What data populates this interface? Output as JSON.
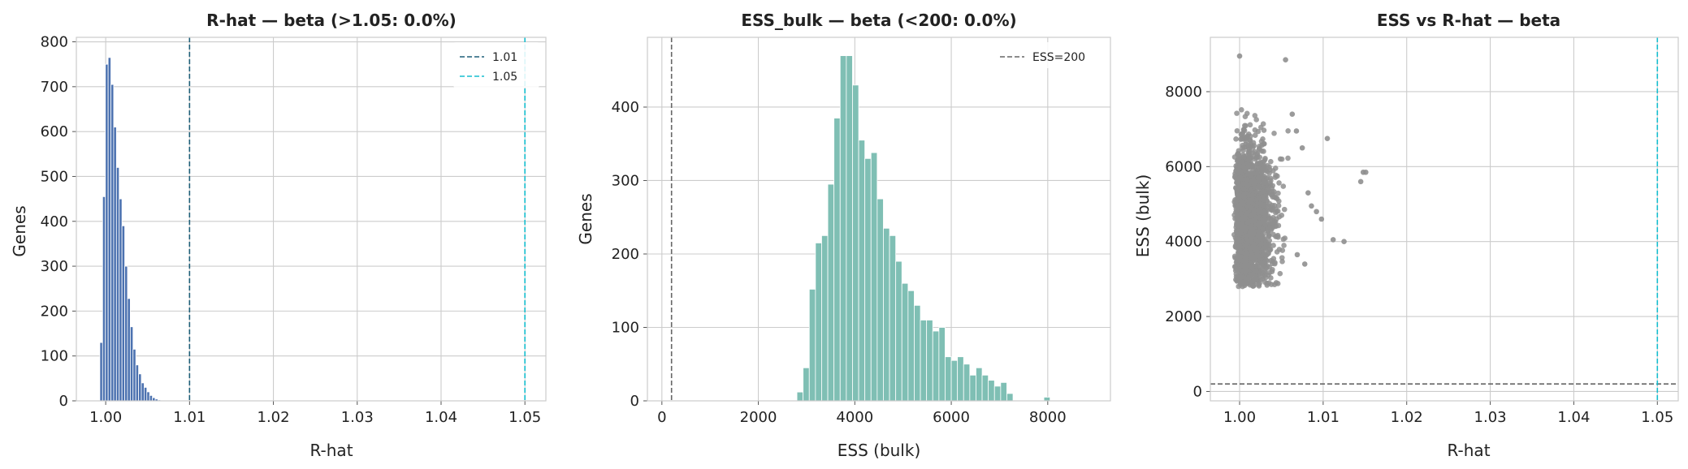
{
  "colors": {
    "hist1": "#4c72b0",
    "hist2": "#7fbfb4",
    "scatter": "#8f8f8f",
    "line_dark": "#1f5f78",
    "line_teal": "#17becf",
    "line_gray": "#666666"
  },
  "chart_data": [
    {
      "type": "histogram",
      "title": "R-hat — beta (>1.05: 0.0%)",
      "xlabel": "R-hat",
      "ylabel": "Genes",
      "xlim": [
        0.9965,
        1.0525
      ],
      "ylim": [
        0,
        810
      ],
      "xticks": [
        1.0,
        1.01,
        1.02,
        1.03,
        1.04,
        1.05
      ],
      "xtick_labels": [
        "1.00",
        "1.01",
        "1.02",
        "1.03",
        "1.04",
        "1.05"
      ],
      "yticks": [
        0,
        100,
        200,
        300,
        400,
        500,
        600,
        700,
        800
      ],
      "ytick_labels": [
        "0",
        "100",
        "200",
        "300",
        "400",
        "500",
        "600",
        "700",
        "800"
      ],
      "bin_start": 0.9993,
      "bin_width": 0.00033,
      "counts": [
        130,
        455,
        750,
        765,
        705,
        610,
        520,
        450,
        390,
        300,
        228,
        165,
        115,
        80,
        60,
        40,
        30,
        20,
        12,
        7,
        4,
        2,
        1
      ],
      "vlines": [
        {
          "x": 1.01,
          "label": "1.01",
          "color": "#1f5f78"
        },
        {
          "x": 1.05,
          "label": "1.05",
          "color": "#17becf"
        }
      ],
      "legend": "top-right",
      "grid": true
    },
    {
      "type": "histogram",
      "title": "ESS_bulk — beta (<200: 0.0%)",
      "xlabel": "ESS (bulk)",
      "ylabel": "Genes",
      "xlim": [
        -300,
        9300
      ],
      "ylim": [
        0,
        495
      ],
      "xticks": [
        0,
        2000,
        4000,
        6000,
        8000
      ],
      "xtick_labels": [
        "0",
        "2000",
        "4000",
        "6000",
        "8000"
      ],
      "yticks": [
        0,
        100,
        200,
        300,
        400
      ],
      "ytick_labels": [
        "0",
        "100",
        "200",
        "300",
        "400"
      ],
      "bin_start": 2800,
      "bin_width": 128,
      "counts": [
        12,
        45,
        152,
        215,
        225,
        295,
        385,
        470,
        470,
        430,
        355,
        330,
        338,
        275,
        235,
        225,
        190,
        160,
        150,
        130,
        110,
        110,
        95,
        100,
        60,
        55,
        60,
        50,
        35,
        45,
        35,
        28,
        20,
        25,
        10,
        0,
        0,
        0,
        0,
        0,
        5
      ],
      "vlines": [
        {
          "x": 200,
          "label": "ESS=200",
          "color": "#666666"
        }
      ],
      "legend": "top-right",
      "grid": true
    },
    {
      "type": "scatter",
      "title": "ESS vs R-hat — beta",
      "xlabel": "R-hat",
      "ylabel": "ESS (bulk)",
      "xlim": [
        0.9965,
        1.0525
      ],
      "ylim": [
        -250,
        9450
      ],
      "xticks": [
        1.0,
        1.01,
        1.02,
        1.03,
        1.04,
        1.05
      ],
      "xtick_labels": [
        "1.00",
        "1.01",
        "1.02",
        "1.03",
        "1.04",
        "1.05"
      ],
      "yticks": [
        0,
        2000,
        4000,
        6000,
        8000
      ],
      "ytick_labels": [
        "0",
        "2000",
        "4000",
        "6000",
        "8000"
      ],
      "core": {
        "x_range": [
          0.9993,
          1.006
        ],
        "y_range": [
          2800,
          8300
        ],
        "count": 2200
      },
      "outliers": [
        {
          "x": 1.0,
          "y": 8950
        },
        {
          "x": 1.0055,
          "y": 8850
        },
        {
          "x": 1.0063,
          "y": 7400
        },
        {
          "x": 1.0068,
          "y": 6950
        },
        {
          "x": 1.0075,
          "y": 6500
        },
        {
          "x": 1.0082,
          "y": 5300
        },
        {
          "x": 1.0086,
          "y": 4950
        },
        {
          "x": 1.0092,
          "y": 4800
        },
        {
          "x": 1.0098,
          "y": 4600
        },
        {
          "x": 1.0105,
          "y": 6750
        },
        {
          "x": 1.0112,
          "y": 4050
        },
        {
          "x": 1.0125,
          "y": 4000
        },
        {
          "x": 1.0145,
          "y": 5600
        },
        {
          "x": 1.0148,
          "y": 5850
        },
        {
          "x": 1.0151,
          "y": 5850
        },
        {
          "x": 1.0078,
          "y": 3400
        },
        {
          "x": 1.0069,
          "y": 3650
        }
      ],
      "hlines": [
        {
          "y": 200,
          "color": "#666666"
        }
      ],
      "vlines": [
        {
          "x": 1.05,
          "color": "#17becf"
        }
      ],
      "grid": true
    }
  ]
}
